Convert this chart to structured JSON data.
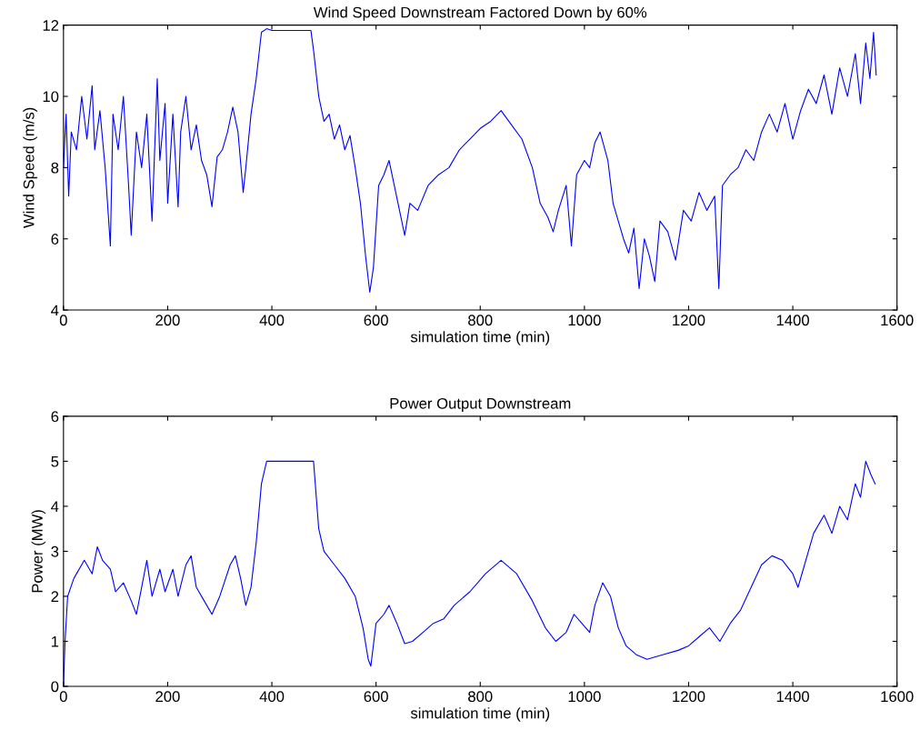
{
  "chart_data": [
    {
      "type": "line",
      "title": "Wind Speed Downstream Factored Down by 60%",
      "xlabel": "simulation time (min)",
      "ylabel": "Wind Speed (m/s)",
      "xlim": [
        0,
        1600
      ],
      "ylim": [
        4,
        12
      ],
      "xticks": [
        0,
        200,
        400,
        600,
        800,
        1000,
        1200,
        1400,
        1600
      ],
      "yticks": [
        4,
        6,
        8,
        10,
        12
      ],
      "grid": false,
      "legend": false,
      "series": [
        {
          "color": "#0000ff",
          "x": [
            0,
            5,
            10,
            15,
            25,
            35,
            45,
            55,
            60,
            70,
            80,
            90,
            95,
            105,
            115,
            125,
            130,
            140,
            150,
            160,
            170,
            180,
            185,
            195,
            200,
            210,
            220,
            225,
            235,
            245,
            255,
            265,
            275,
            285,
            295,
            305,
            315,
            325,
            335,
            345,
            350,
            360,
            370,
            380,
            390,
            400,
            440,
            475,
            480,
            490,
            500,
            510,
            520,
            530,
            540,
            550,
            560,
            570,
            580,
            588,
            595,
            605,
            615,
            625,
            635,
            645,
            655,
            665,
            680,
            700,
            720,
            740,
            760,
            780,
            800,
            820,
            840,
            860,
            880,
            900,
            915,
            930,
            940,
            950,
            965,
            975,
            985,
            1000,
            1010,
            1020,
            1030,
            1045,
            1055,
            1065,
            1075,
            1085,
            1095,
            1105,
            1115,
            1125,
            1135,
            1145,
            1160,
            1175,
            1190,
            1205,
            1220,
            1235,
            1250,
            1258,
            1265,
            1280,
            1295,
            1310,
            1325,
            1340,
            1355,
            1370,
            1385,
            1400,
            1415,
            1430,
            1445,
            1460,
            1475,
            1490,
            1505,
            1520,
            1530,
            1540,
            1548,
            1555,
            1560
          ],
          "values": [
            8.0,
            9.5,
            7.2,
            9.0,
            8.5,
            10.0,
            8.8,
            10.3,
            8.5,
            9.6,
            8.0,
            5.8,
            9.5,
            8.5,
            10.0,
            7.5,
            6.1,
            9.0,
            8.0,
            9.5,
            6.5,
            10.5,
            8.2,
            9.8,
            7.0,
            9.5,
            6.9,
            9.0,
            10.0,
            8.5,
            9.2,
            8.2,
            7.8,
            6.9,
            8.3,
            8.5,
            9.0,
            9.7,
            9.0,
            7.3,
            8.0,
            9.5,
            10.5,
            11.8,
            11.9,
            11.85,
            11.85,
            11.85,
            11.3,
            10.0,
            9.3,
            9.5,
            8.8,
            9.2,
            8.5,
            8.9,
            8.0,
            7.0,
            5.5,
            4.5,
            5.2,
            7.5,
            7.8,
            8.2,
            7.5,
            6.8,
            6.1,
            7.0,
            6.8,
            7.5,
            7.8,
            8.0,
            8.5,
            8.8,
            9.1,
            9.3,
            9.6,
            9.2,
            8.8,
            8.0,
            7.0,
            6.6,
            6.2,
            6.8,
            7.5,
            5.8,
            7.8,
            8.2,
            8.0,
            8.7,
            9.0,
            8.2,
            7.0,
            6.5,
            6.0,
            5.6,
            6.3,
            4.6,
            6.0,
            5.5,
            4.8,
            6.5,
            6.2,
            5.4,
            6.8,
            6.5,
            7.3,
            6.8,
            7.2,
            4.6,
            7.5,
            7.8,
            8.0,
            8.5,
            8.2,
            9.0,
            9.5,
            9.0,
            9.8,
            8.8,
            9.6,
            10.2,
            9.8,
            10.6,
            9.5,
            10.8,
            10.0,
            11.2,
            9.8,
            11.5,
            10.5,
            11.8,
            10.6
          ]
        }
      ]
    },
    {
      "type": "line",
      "title": "Power Output Downstream",
      "xlabel": "simulation time (min)",
      "ylabel": "Power (MW)",
      "xlim": [
        0,
        1600
      ],
      "ylim": [
        0,
        6
      ],
      "xticks": [
        0,
        200,
        400,
        600,
        800,
        1000,
        1200,
        1400,
        1600
      ],
      "yticks": [
        0,
        1,
        2,
        3,
        4,
        5,
        6
      ],
      "grid": false,
      "legend": false,
      "series": [
        {
          "color": "#0000ff",
          "x": [
            0,
            3,
            8,
            20,
            40,
            55,
            65,
            75,
            90,
            100,
            115,
            130,
            140,
            150,
            160,
            170,
            185,
            195,
            210,
            220,
            235,
            245,
            255,
            270,
            285,
            300,
            320,
            330,
            340,
            350,
            360,
            370,
            380,
            390,
            480,
            490,
            500,
            520,
            540,
            560,
            575,
            585,
            590,
            600,
            615,
            625,
            640,
            655,
            670,
            690,
            710,
            730,
            750,
            780,
            810,
            840,
            870,
            900,
            925,
            945,
            965,
            980,
            995,
            1010,
            1020,
            1035,
            1050,
            1065,
            1080,
            1100,
            1120,
            1150,
            1180,
            1200,
            1220,
            1240,
            1260,
            1280,
            1300,
            1320,
            1340,
            1360,
            1380,
            1400,
            1410,
            1420,
            1440,
            1460,
            1475,
            1490,
            1505,
            1520,
            1530,
            1540,
            1550,
            1558
          ],
          "values": [
            0.0,
            1.0,
            2.0,
            2.4,
            2.8,
            2.5,
            3.1,
            2.8,
            2.6,
            2.1,
            2.3,
            1.9,
            1.6,
            2.2,
            2.8,
            2.0,
            2.6,
            2.1,
            2.6,
            2.0,
            2.7,
            2.9,
            2.2,
            1.9,
            1.6,
            2.0,
            2.7,
            2.9,
            2.4,
            1.8,
            2.2,
            3.2,
            4.5,
            5.0,
            5.0,
            3.5,
            3.0,
            2.7,
            2.4,
            2.0,
            1.3,
            0.6,
            0.45,
            1.4,
            1.6,
            1.8,
            1.4,
            0.95,
            1.0,
            1.2,
            1.4,
            1.5,
            1.8,
            2.1,
            2.5,
            2.8,
            2.5,
            1.9,
            1.3,
            1.0,
            1.2,
            1.6,
            1.4,
            1.2,
            1.8,
            2.3,
            2.0,
            1.3,
            0.9,
            0.7,
            0.6,
            0.7,
            0.8,
            0.9,
            1.1,
            1.3,
            1.0,
            1.4,
            1.7,
            2.2,
            2.7,
            2.9,
            2.8,
            2.5,
            2.2,
            2.6,
            3.4,
            3.8,
            3.4,
            4.0,
            3.7,
            4.5,
            4.2,
            5.0,
            4.7,
            4.5
          ]
        }
      ]
    }
  ]
}
